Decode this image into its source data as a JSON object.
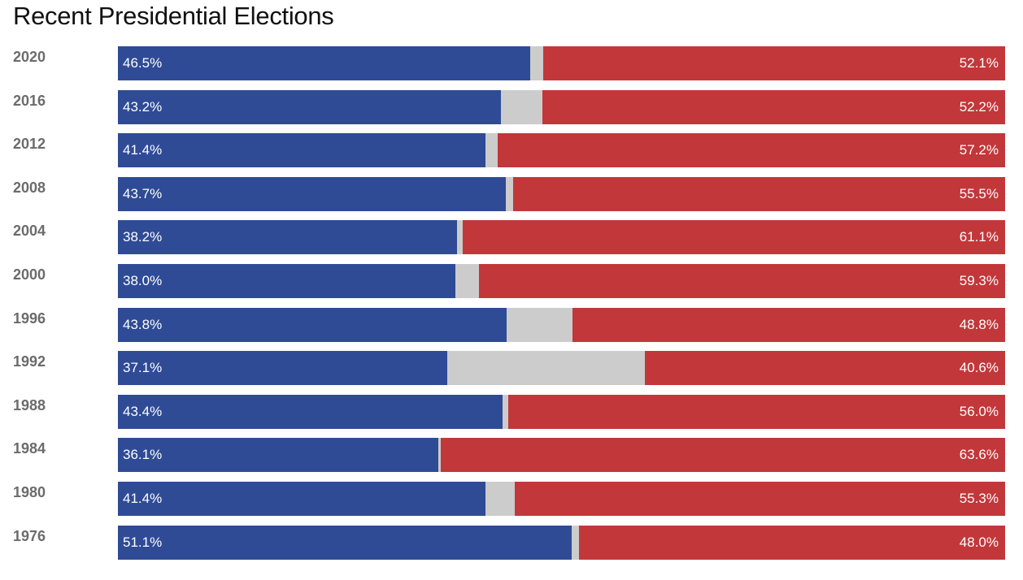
{
  "chart_data": {
    "type": "bar",
    "stacked": true,
    "orientation": "horizontal",
    "title": "Recent Presidential Elections",
    "xlim": [
      0,
      100
    ],
    "categories": [
      "2020",
      "2016",
      "2012",
      "2008",
      "2004",
      "2000",
      "1996",
      "1992",
      "1988",
      "1984",
      "1980",
      "1976"
    ],
    "series": [
      {
        "values": [
          46.5,
          43.2,
          41.4,
          43.7,
          38.2,
          38.0,
          43.8,
          37.1,
          43.4,
          36.1,
          41.4,
          51.1
        ],
        "color": "#2f4b96"
      },
      {
        "values": [
          1.4,
          4.6,
          1.4,
          0.8,
          0.7,
          2.7,
          7.4,
          22.3,
          0.6,
          0.3,
          3.3,
          0.9
        ],
        "color": "#cccccc"
      },
      {
        "values": [
          52.1,
          52.2,
          57.2,
          55.5,
          61.1,
          59.3,
          48.8,
          40.6,
          56.0,
          63.6,
          55.3,
          48.0
        ],
        "color": "#c2373a"
      }
    ],
    "labels": {
      "dem": [
        "46.5%",
        "43.2%",
        "41.4%",
        "43.7%",
        "38.2%",
        "38.0%",
        "43.8%",
        "37.1%",
        "43.4%",
        "36.1%",
        "41.4%",
        "51.1%"
      ],
      "rep": [
        "52.1%",
        "52.2%",
        "57.2%",
        "55.5%",
        "61.1%",
        "59.3%",
        "48.8%",
        "40.6%",
        "56.0%",
        "63.6%",
        "55.3%",
        "48.0%"
      ]
    },
    "grid": false,
    "legend": "none"
  }
}
